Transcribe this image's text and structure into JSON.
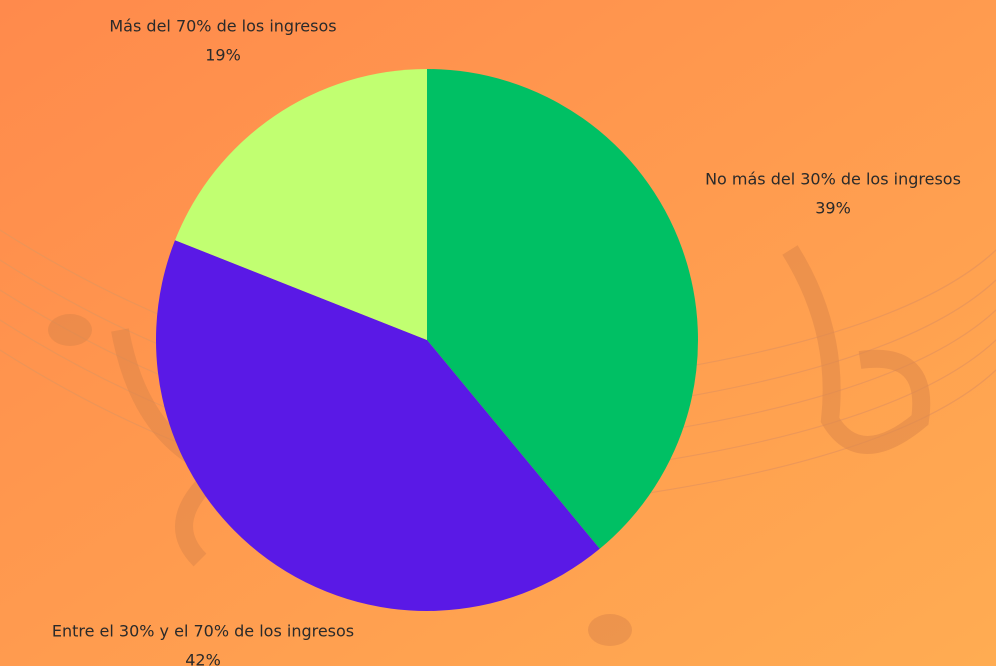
{
  "chart_data": {
    "type": "pie",
    "categories": [
      "No más del 30% de los ingresos",
      "Entre el 30% y el 70% de los ingresos",
      "Más del 70% de los ingresos"
    ],
    "values": [
      39,
      42,
      19
    ],
    "value_labels": [
      "39%",
      "42%",
      "19%"
    ],
    "colors": [
      "#00c064",
      "#5a19e6",
      "#c1ff71"
    ]
  }
}
